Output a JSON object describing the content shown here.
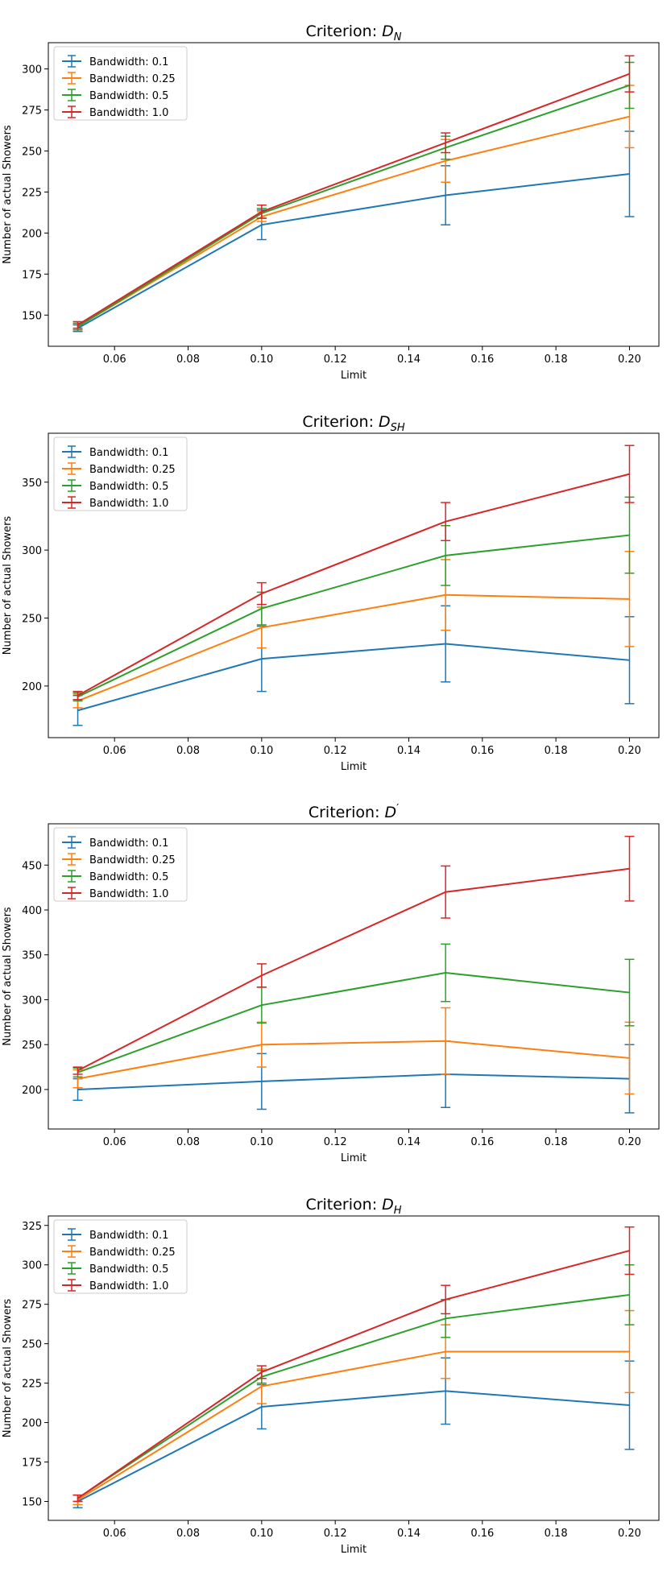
{
  "chart_data": [
    {
      "type": "line",
      "title_prefix": "Criterion: ",
      "title_symbol": "D",
      "title_sub": "N",
      "title_prime": false,
      "xlabel": "Limit",
      "ylabel": "Number of actual Showers",
      "xlim": [
        0.042,
        0.208
      ],
      "ylim": [
        131,
        316
      ],
      "xticks": [
        0.06,
        0.08,
        0.1,
        0.12,
        0.14,
        0.16,
        0.18,
        0.2
      ],
      "xtick_labels": [
        "0.06",
        "0.08",
        "0.10",
        "0.12",
        "0.14",
        "0.16",
        "0.18",
        "0.20"
      ],
      "yticks": [
        150,
        175,
        200,
        225,
        250,
        275,
        300
      ],
      "ytick_labels": [
        "150",
        "175",
        "200",
        "225",
        "250",
        "275",
        "300"
      ],
      "legend_position": "upper-left",
      "x": [
        0.05,
        0.1,
        0.15,
        0.2
      ],
      "series": [
        {
          "name": "Bandwidth: 0.1",
          "values": [
            142,
            205,
            223,
            236
          ],
          "errors": [
            2,
            9,
            18,
            26
          ]
        },
        {
          "name": "Bandwidth: 0.25",
          "values": [
            143,
            210,
            244,
            271
          ],
          "errors": [
            2,
            3,
            13,
            19
          ]
        },
        {
          "name": "Bandwidth: 0.5",
          "values": [
            143,
            212,
            252,
            290
          ],
          "errors": [
            2,
            3,
            7,
            14
          ]
        },
        {
          "name": "Bandwidth: 1.0",
          "values": [
            144,
            213,
            255,
            297
          ],
          "errors": [
            2,
            4,
            6,
            11
          ]
        }
      ]
    },
    {
      "type": "line",
      "title_prefix": "Criterion: ",
      "title_symbol": "D",
      "title_sub": "SH",
      "title_prime": false,
      "xlabel": "Limit",
      "ylabel": "Number of actual Showers",
      "xlim": [
        0.042,
        0.208
      ],
      "ylim": [
        162,
        386
      ],
      "xticks": [
        0.06,
        0.08,
        0.1,
        0.12,
        0.14,
        0.16,
        0.18,
        0.2
      ],
      "xtick_labels": [
        "0.06",
        "0.08",
        "0.10",
        "0.12",
        "0.14",
        "0.16",
        "0.18",
        "0.20"
      ],
      "yticks": [
        200,
        250,
        300,
        350
      ],
      "ytick_labels": [
        "200",
        "250",
        "300",
        "350"
      ],
      "legend_position": "upper-left",
      "x": [
        0.05,
        0.1,
        0.15,
        0.2
      ],
      "series": [
        {
          "name": "Bandwidth: 0.1",
          "values": [
            182,
            220,
            231,
            219
          ],
          "errors": [
            11,
            24,
            28,
            32
          ]
        },
        {
          "name": "Bandwidth: 0.25",
          "values": [
            189,
            243,
            267,
            264
          ],
          "errors": [
            5,
            15,
            26,
            35
          ]
        },
        {
          "name": "Bandwidth: 0.5",
          "values": [
            192,
            257,
            296,
            311
          ],
          "errors": [
            3,
            12,
            22,
            28
          ]
        },
        {
          "name": "Bandwidth: 1.0",
          "values": [
            193,
            268,
            321,
            356
          ],
          "errors": [
            3,
            8,
            14,
            21
          ]
        }
      ]
    },
    {
      "type": "line",
      "title_prefix": "Criterion: ",
      "title_symbol": "D",
      "title_sub": "",
      "title_prime": true,
      "xlabel": "Limit",
      "ylabel": "Number of actual Showers",
      "xlim": [
        0.042,
        0.208
      ],
      "ylim": [
        156,
        496
      ],
      "xticks": [
        0.06,
        0.08,
        0.1,
        0.12,
        0.14,
        0.16,
        0.18,
        0.2
      ],
      "xtick_labels": [
        "0.06",
        "0.08",
        "0.10",
        "0.12",
        "0.14",
        "0.16",
        "0.18",
        "0.20"
      ],
      "yticks": [
        200,
        250,
        300,
        350,
        400,
        450
      ],
      "ytick_labels": [
        "200",
        "250",
        "300",
        "350",
        "400",
        "450"
      ],
      "legend_position": "upper-left",
      "x": [
        0.05,
        0.1,
        0.15,
        0.2
      ],
      "series": [
        {
          "name": "Bandwidth: 0.1",
          "values": [
            200,
            209,
            217,
            212
          ],
          "errors": [
            12,
            31,
            37,
            38
          ]
        },
        {
          "name": "Bandwidth: 0.25",
          "values": [
            212,
            250,
            254,
            235
          ],
          "errors": [
            10,
            25,
            37,
            40
          ]
        },
        {
          "name": "Bandwidth: 0.5",
          "values": [
            219,
            294,
            330,
            308
          ],
          "errors": [
            5,
            20,
            32,
            37
          ]
        },
        {
          "name": "Bandwidth: 1.0",
          "values": [
            221,
            327,
            420,
            446
          ],
          "errors": [
            4,
            13,
            29,
            36
          ]
        }
      ]
    },
    {
      "type": "line",
      "title_prefix": "Criterion: ",
      "title_symbol": "D",
      "title_sub": "H",
      "title_prime": false,
      "xlabel": "Limit",
      "ylabel": "Number of actual Showers",
      "xlim": [
        0.042,
        0.208
      ],
      "ylim": [
        138,
        331
      ],
      "xticks": [
        0.06,
        0.08,
        0.1,
        0.12,
        0.14,
        0.16,
        0.18,
        0.2
      ],
      "xtick_labels": [
        "0.06",
        "0.08",
        "0.10",
        "0.12",
        "0.14",
        "0.16",
        "0.18",
        "0.20"
      ],
      "yticks": [
        150,
        175,
        200,
        225,
        250,
        275,
        300,
        325
      ],
      "ytick_labels": [
        "150",
        "175",
        "200",
        "225",
        "250",
        "275",
        "300",
        "325"
      ],
      "legend_position": "upper-left",
      "x": [
        0.05,
        0.1,
        0.15,
        0.2
      ],
      "series": [
        {
          "name": "Bandwidth: 0.1",
          "values": [
            150,
            210,
            220,
            211
          ],
          "errors": [
            4,
            14,
            21,
            28
          ]
        },
        {
          "name": "Bandwidth: 0.25",
          "values": [
            151,
            223,
            245,
            245
          ],
          "errors": [
            3,
            11,
            17,
            26
          ]
        },
        {
          "name": "Bandwidth: 0.5",
          "values": [
            152,
            229,
            266,
            281
          ],
          "errors": [
            2,
            4,
            12,
            19
          ]
        },
        {
          "name": "Bandwidth: 1.0",
          "values": [
            152,
            232,
            278,
            309
          ],
          "errors": [
            2,
            4,
            9,
            15
          ]
        }
      ]
    }
  ],
  "colors": [
    "#1f77b4",
    "#ff7f0e",
    "#2ca02c",
    "#d62728"
  ]
}
